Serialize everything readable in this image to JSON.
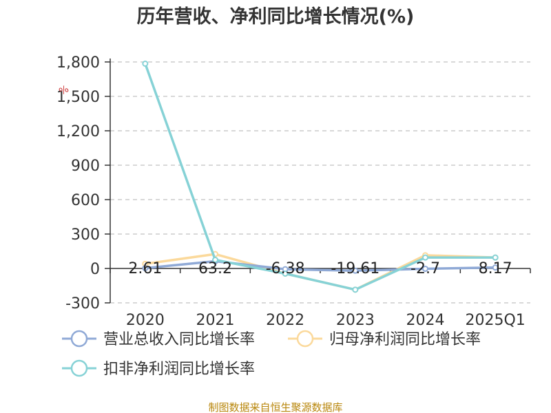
{
  "chart_data": {
    "type": "line",
    "title": "历年营收、净利同比增长情况(%)",
    "categories": [
      "2020",
      "2021",
      "2022",
      "2023",
      "2024",
      "2025Q1"
    ],
    "ylim": [
      -300,
      1800
    ],
    "yticks": [
      1800,
      1500,
      1200,
      900,
      600,
      300,
      0,
      -300
    ],
    "ytick_labels": [
      "1,800",
      "1,500",
      "1,200",
      "900",
      "600",
      "300",
      "0",
      "-300"
    ],
    "grid": true,
    "legend_position": "bottom-left",
    "series": [
      {
        "name": "营业总收入同比增长率",
        "color": "#8fa9d6",
        "values": [
          2.61,
          63.2,
          -6.38,
          -19.61,
          -2.7,
          8.17
        ]
      },
      {
        "name": "归母净利润同比增长率",
        "color": "#fbd99b",
        "values": [
          40,
          125,
          -45,
          -185,
          115,
          95
        ]
      },
      {
        "name": "扣非净利润同比增长率",
        "color": "#86d2d6",
        "values": [
          1785,
          75,
          -45,
          -185,
          95,
          95
        ]
      }
    ],
    "data_labels": [
      "2.61",
      "63.2",
      "-6.38",
      "-19.61",
      "-2.7",
      "8.17"
    ],
    "axis_unit_glyph": "%",
    "source": "制图数据来自恒生聚源数据库"
  }
}
